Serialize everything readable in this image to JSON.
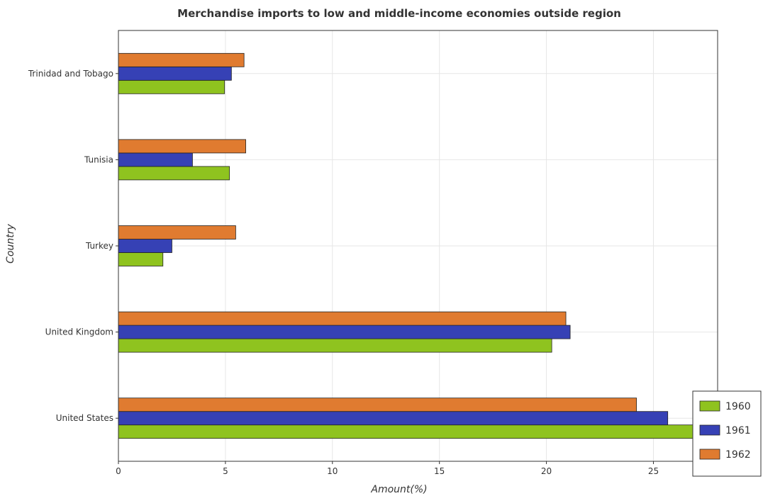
{
  "chart_data": {
    "type": "bar",
    "orientation": "horizontal",
    "title": "Merchandise imports to low and middle-income economies outside region",
    "xlabel": "Amount(%)",
    "ylabel": "Country",
    "categories": [
      "Trinidad and Tobago",
      "Tunisia",
      "Turkey",
      "United Kingdom",
      "United States"
    ],
    "series": [
      {
        "name": "1960",
        "color": "#8fc31f",
        "values": [
          4.96,
          5.19,
          2.08,
          20.25,
          26.87
        ]
      },
      {
        "name": "1961",
        "color": "#3641b5",
        "values": [
          5.28,
          3.46,
          2.5,
          21.11,
          25.67
        ]
      },
      {
        "name": "1962",
        "color": "#e07b30",
        "values": [
          5.87,
          5.95,
          5.48,
          20.91,
          24.21
        ]
      }
    ],
    "xlim": [
      0,
      28
    ],
    "xticks": [
      0,
      5,
      10,
      15,
      20,
      25
    ],
    "xtick_labels": [
      "0",
      "5",
      "10",
      "15",
      "20",
      "25"
    ],
    "grid": true,
    "legend_position": "bottom-right"
  }
}
